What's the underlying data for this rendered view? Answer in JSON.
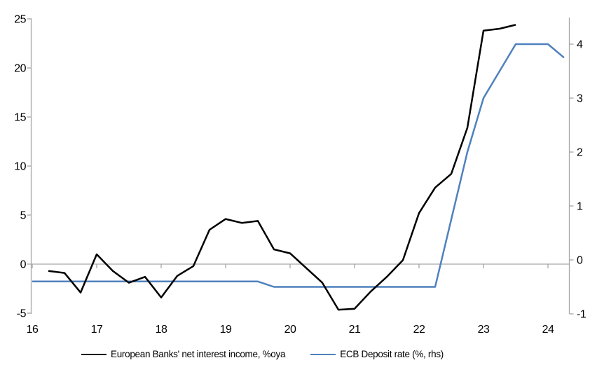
{
  "chart_data": {
    "type": "line",
    "title": "",
    "grid": "zero-line-only",
    "legend_position": "bottom",
    "x_axis": {
      "tick_values": [
        16,
        17,
        18,
        19,
        20,
        21,
        22,
        23,
        24
      ],
      "tick_labels": [
        "16",
        "17",
        "18",
        "19",
        "20",
        "21",
        "22",
        "23",
        "24"
      ],
      "range": [
        16,
        24.33
      ]
    },
    "left_axis": {
      "tick_values": [
        25,
        20,
        15,
        10,
        5,
        0,
        -5
      ],
      "range": [
        -5,
        25
      ]
    },
    "right_axis": {
      "tick_values": [
        4,
        3,
        2,
        1,
        0,
        -1
      ],
      "range": [
        -1,
        4.5
      ]
    },
    "series": [
      {
        "name": "European Banks' net interest income, %oya",
        "axis": "left",
        "color": "#000000",
        "x": [
          16.25,
          16.5,
          16.75,
          17,
          17.25,
          17.5,
          17.75,
          18,
          18.25,
          18.5,
          18.75,
          19,
          19.25,
          19.5,
          19.75,
          20,
          20.25,
          20.5,
          20.75,
          21,
          21.25,
          21.5,
          21.75,
          22,
          22.25,
          22.5,
          22.75,
          23,
          23.25,
          23.5
        ],
        "y": [
          -0.7,
          -0.9,
          -2.9,
          1.0,
          -0.7,
          -1.9,
          -1.3,
          -3.4,
          -1.2,
          -0.2,
          3.5,
          4.6,
          4.2,
          4.4,
          1.5,
          1.1,
          -0.4,
          -1.9,
          -4.65,
          -4.55,
          -2.8,
          -1.3,
          0.4,
          5.2,
          7.8,
          9.2,
          13.9,
          23.8,
          24.0,
          24.4
        ]
      },
      {
        "name": "ECB Deposit rate (%, rhs)",
        "axis": "right",
        "color": "#4F81BD",
        "x": [
          16,
          16.25,
          16.5,
          16.75,
          17,
          17.25,
          17.5,
          17.75,
          18,
          18.25,
          18.5,
          18.75,
          19,
          19.25,
          19.5,
          19.75,
          20,
          20.25,
          20.5,
          20.75,
          21,
          21.25,
          21.5,
          21.75,
          22,
          22.25,
          22.5,
          22.75,
          23,
          23.25,
          23.5,
          23.75,
          24,
          24.25
        ],
        "y": [
          -0.4,
          -0.4,
          -0.4,
          -0.4,
          -0.4,
          -0.4,
          -0.4,
          -0.4,
          -0.4,
          -0.4,
          -0.4,
          -0.4,
          -0.4,
          -0.4,
          -0.4,
          -0.5,
          -0.5,
          -0.5,
          -0.5,
          -0.5,
          -0.5,
          -0.5,
          -0.5,
          -0.5,
          -0.5,
          -0.5,
          0.75,
          2.0,
          3.0,
          3.5,
          4.0,
          4.0,
          4.0,
          3.75
        ]
      }
    ]
  },
  "colors": {
    "axis": "#A6A6A6",
    "label": "#000000",
    "background": "#FFFFFF"
  }
}
